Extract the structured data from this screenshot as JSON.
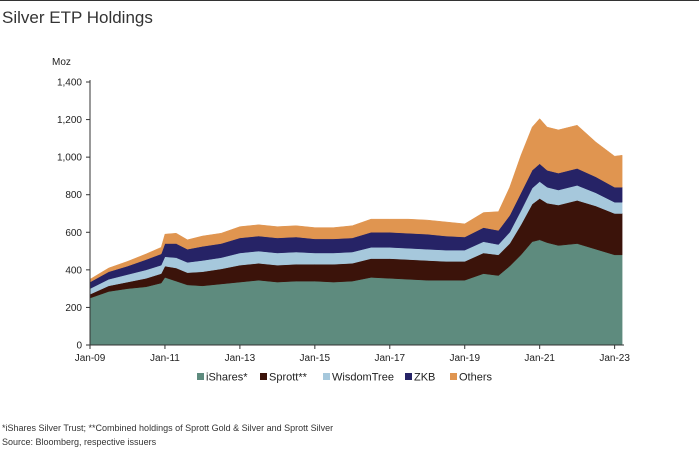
{
  "header": {
    "title": "Silver ETP Holdings"
  },
  "footnotes": {
    "note": "*iShares Silver Trust; **Combined holdings of Sprott Gold & Silver and Sprott Silver",
    "source": "Source: Bloomberg, respective issuers"
  },
  "chart_data": {
    "type": "area",
    "stacked": true,
    "title": "Silver ETP Holdings",
    "ylabel": "Moz",
    "ylim": [
      0,
      1400
    ],
    "yticks": [
      0,
      200,
      400,
      600,
      800,
      1000,
      1200,
      1400
    ],
    "ytick_labels": [
      "0",
      "200",
      "400",
      "600",
      "800",
      "1,000",
      "1,200",
      "1,400"
    ],
    "xlim": [
      2009.0,
      2023.25
    ],
    "xticks": [
      2009,
      2011,
      2013,
      2015,
      2017,
      2019,
      2021,
      2023
    ],
    "xtick_labels": [
      "Jan-09",
      "Jan-11",
      "Jan-13",
      "Jan-15",
      "Jan-17",
      "Jan-19",
      "Jan-21",
      "Jan-23"
    ],
    "legend_position": "bottom",
    "grid": false,
    "x": [
      2009.0,
      2009.5,
      2010.0,
      2010.5,
      2010.9,
      2011.0,
      2011.3,
      2011.6,
      2012.0,
      2012.5,
      2013.0,
      2013.5,
      2014.0,
      2014.5,
      2015.0,
      2015.5,
      2016.0,
      2016.5,
      2017.0,
      2017.5,
      2018.0,
      2018.5,
      2019.0,
      2019.5,
      2019.9,
      2020.2,
      2020.5,
      2020.8,
      2021.0,
      2021.2,
      2021.5,
      2022.0,
      2022.5,
      2023.0,
      2023.2
    ],
    "series": [
      {
        "name": "iShares*",
        "color": "#5e8b7e",
        "values": [
          250,
          285,
          300,
          310,
          330,
          360,
          340,
          320,
          315,
          325,
          335,
          345,
          335,
          340,
          340,
          335,
          340,
          360,
          355,
          350,
          345,
          345,
          345,
          380,
          370,
          420,
          480,
          550,
          560,
          545,
          530,
          540,
          510,
          480,
          480
        ]
      },
      {
        "name": "Sprott**",
        "color": "#3b130a",
        "values": [
          20,
          30,
          35,
          45,
          50,
          60,
          70,
          65,
          75,
          80,
          90,
          90,
          90,
          90,
          90,
          95,
          95,
          100,
          105,
          105,
          105,
          100,
          100,
          110,
          110,
          120,
          160,
          200,
          220,
          210,
          215,
          230,
          230,
          220,
          220
        ]
      },
      {
        "name": "WisdomTree",
        "color": "#a6c8dc",
        "values": [
          30,
          35,
          40,
          45,
          45,
          50,
          55,
          55,
          60,
          60,
          65,
          65,
          65,
          65,
          60,
          60,
          60,
          60,
          60,
          60,
          60,
          60,
          60,
          60,
          55,
          60,
          75,
          85,
          90,
          85,
          80,
          80,
          70,
          60,
          60
        ]
      },
      {
        "name": "ZKB",
        "color": "#262366",
        "values": [
          35,
          40,
          45,
          55,
          60,
          70,
          75,
          70,
          75,
          75,
          80,
          80,
          80,
          80,
          75,
          75,
          75,
          80,
          80,
          80,
          80,
          75,
          70,
          75,
          75,
          90,
          95,
          95,
          95,
          90,
          90,
          90,
          85,
          80,
          80
        ]
      },
      {
        "name": "Others",
        "color": "#e09550",
        "values": [
          15,
          20,
          25,
          30,
          35,
          50,
          55,
          50,
          55,
          55,
          60,
          60,
          60,
          60,
          60,
          60,
          65,
          70,
          70,
          75,
          75,
          75,
          70,
          80,
          100,
          150,
          200,
          230,
          240,
          230,
          230,
          230,
          185,
          165,
          170
        ]
      }
    ]
  }
}
